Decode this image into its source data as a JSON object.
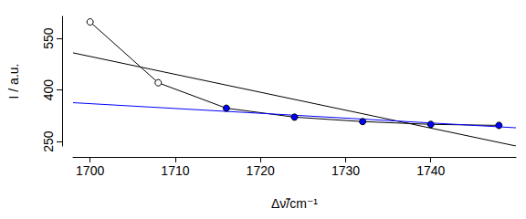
{
  "chart_data": {
    "type": "line",
    "x_label": "Δν̃/cm⁻¹",
    "y_label": "I / a.u.",
    "xlim": [
      1698,
      1750
    ],
    "xticks": [
      1700,
      1710,
      1720,
      1730,
      1740
    ],
    "ylim": [
      237,
      614
    ],
    "yticks": [
      250,
      400,
      550
    ],
    "grid": false,
    "series": [
      {
        "type": "line",
        "color": "#000000",
        "marker": "circle",
        "line_style": "solid",
        "colors": [
          "#ffffff",
          "#ffffff",
          "#0000ff",
          "#0000ff",
          "#0000ff",
          "#0000ff",
          "#0000ff"
        ],
        "x": [
          1700,
          1708,
          1716,
          1724,
          1732,
          1740,
          1748
        ],
        "values": [
          598,
          421,
          347,
          321,
          308,
          300,
          297
        ]
      },
      {
        "type": "line",
        "color": "#000000",
        "line_style": "solid",
        "x": [
          1698,
          1750
        ],
        "values": [
          508,
          237
        ]
      },
      {
        "type": "line",
        "color": "#0000ff",
        "line_style": "solid",
        "x": [
          1698,
          1750
        ],
        "values": [
          363,
          290
        ]
      }
    ]
  }
}
